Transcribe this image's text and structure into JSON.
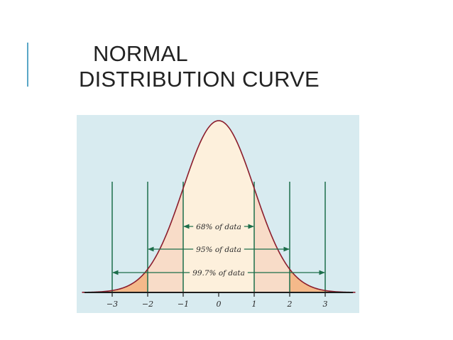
{
  "slide": {
    "title_line1": "NORMAL",
    "title_line2": "DISTRIBUTION CURVE",
    "accent_color": "#5aa7c6"
  },
  "chart_data": {
    "type": "area",
    "title": "",
    "xlabel": "",
    "ylabel": "",
    "xlim": [
      -3.85,
      3.85
    ],
    "ticks": [
      "−3",
      "−2",
      "−1",
      "0",
      "1",
      "2",
      "3"
    ],
    "tick_values": [
      -3,
      -2,
      -1,
      0,
      1,
      2,
      3
    ],
    "curve": "standard normal density",
    "grid": false,
    "intervals": [
      {
        "label": "68% of data",
        "from": -1,
        "to": 1
      },
      {
        "label": "95% of data",
        "from": -2,
        "to": 2
      },
      {
        "label": "99.7% of data",
        "from": -3,
        "to": 3
      }
    ],
    "colors": {
      "background": "#d8ebf0",
      "center_fill": "#fdf0dc",
      "mid_fill": "#f8dcc8",
      "tail_fill": "#f4b98a",
      "curve": "#8b1d2c",
      "lines": "#1c6e4a",
      "axis": "#1e1e1e"
    }
  }
}
